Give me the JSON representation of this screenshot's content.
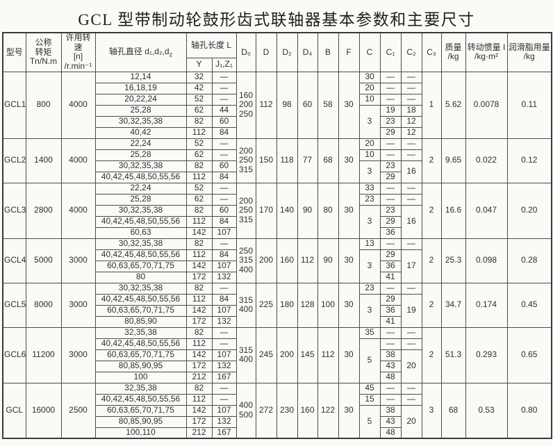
{
  "title": "GCL 型带制动轮鼓形齿式联轴器基本参数和主要尺寸",
  "header": {
    "model": "型号",
    "torque": "公称\n转矩\nTn/N.m",
    "speed": "许用转速\n[n]\n/r.min⁻¹",
    "bore_diameter_main": "轴孔直径 d₁,d₂,d",
    "bore_diameter_sub": "z",
    "bore_length": "轴孔长度 L",
    "len_Y": "Y",
    "len_J1Z1": "J₁,Z₁",
    "D0": "D₀",
    "D": "D",
    "D2": "D₂",
    "D4": "D₄",
    "B": "B",
    "F": "F",
    "C": "C",
    "C1": "C₁",
    "C2": "C₂",
    "C3": "C₃",
    "mass": "质量\n/kg",
    "inertia": "转动惯量 I\n/kg·m²",
    "grease": "润滑脂用量\n/kg"
  },
  "groups": [
    {
      "model": "GCL1",
      "torque": "800",
      "speed": "4000",
      "rows": [
        {
          "d": "12,14",
          "Y": "32",
          "J": "—"
        },
        {
          "d": "16,18,19",
          "Y": "42",
          "J": "—"
        },
        {
          "d": "20,22,24",
          "Y": "52",
          "J": "—"
        },
        {
          "d": "25,28",
          "Y": "62",
          "J": "44"
        },
        {
          "d": "30,32,35,38",
          "Y": "82",
          "J": "60"
        },
        {
          "d": "40,42",
          "Y": "112",
          "J": "84"
        }
      ],
      "D0": "160\n200\n250",
      "D": "112",
      "D2": "98",
      "D4": "60",
      "B": "58",
      "F": "30",
      "C": [
        [
          "30",
          1
        ],
        [
          "20",
          1
        ],
        [
          "10",
          1
        ],
        [
          "3",
          3
        ]
      ],
      "C1": [
        "—",
        "—",
        "—",
        "19",
        "23",
        "29"
      ],
      "C2": [
        [
          "—",
          1
        ],
        [
          "—",
          1
        ],
        [
          "—",
          1
        ],
        [
          "18",
          1
        ],
        [
          "12",
          1
        ],
        [
          "12",
          1
        ]
      ],
      "C3": "1",
      "mass": "5.62",
      "inertia": "0.0078",
      "grease": "0.11"
    },
    {
      "model": "GCL2",
      "torque": "1400",
      "speed": "4000",
      "rows": [
        {
          "d": "22,24",
          "Y": "52",
          "J": "—"
        },
        {
          "d": "25,28",
          "Y": "62",
          "J": "—"
        },
        {
          "d": "30,32,35,38",
          "Y": "82",
          "J": "60"
        },
        {
          "d": "40,42,45,48,50,55,56",
          "Y": "112",
          "J": "84"
        }
      ],
      "D0": "200\n250\n315",
      "D": "150",
      "D2": "118",
      "D4": "77",
      "B": "68",
      "F": "30",
      "C": [
        [
          "20",
          1
        ],
        [
          "10",
          1
        ],
        [
          "3",
          2
        ]
      ],
      "C1": [
        "—",
        "—",
        "23",
        "29"
      ],
      "C2": [
        [
          "—",
          1
        ],
        [
          "—",
          1
        ],
        [
          "16",
          2
        ]
      ],
      "C3": "2",
      "mass": "9.65",
      "inertia": "0.022",
      "grease": "0.12"
    },
    {
      "model": "GCL3",
      "torque": "2800",
      "speed": "4000",
      "rows": [
        {
          "d": "22,24",
          "Y": "52",
          "J": "—"
        },
        {
          "d": "25,28",
          "Y": "62",
          "J": "—"
        },
        {
          "d": "30,32,35,38",
          "Y": "82",
          "J": "60"
        },
        {
          "d": "40,42,45,48,50,55,56",
          "Y": "112",
          "J": "84"
        },
        {
          "d": "60,63",
          "Y": "142",
          "J": "107"
        }
      ],
      "D0": "200\n250\n315",
      "D": "170",
      "D2": "140",
      "D4": "90",
      "B": "80",
      "F": "30",
      "C": [
        [
          "33",
          1
        ],
        [
          "23",
          1
        ],
        [
          "3",
          3
        ]
      ],
      "C1": [
        "—",
        "—",
        "23",
        "29",
        "36"
      ],
      "C2": [
        [
          "—",
          1
        ],
        [
          "—",
          1
        ],
        [
          "16",
          3
        ]
      ],
      "C3": "2",
      "mass": "16.6",
      "inertia": "0.047",
      "grease": "0.20"
    },
    {
      "model": "GCL4",
      "torque": "5000",
      "speed": "3000",
      "rows": [
        {
          "d": "30,32,35,38",
          "Y": "82",
          "J": "—"
        },
        {
          "d": "40,42,45,48,50,55,56",
          "Y": "112",
          "J": "84"
        },
        {
          "d": "60,63,65,70,71,75",
          "Y": "142",
          "J": "107"
        },
        {
          "d": "80",
          "Y": "172",
          "J": "132"
        }
      ],
      "D0": "250\n315\n400",
      "D": "200",
      "D2": "160",
      "D4": "112",
      "B": "90",
      "F": "30",
      "C": [
        [
          "13",
          1
        ],
        [
          "3",
          3
        ]
      ],
      "C1": [
        "—",
        "29",
        "36",
        "41"
      ],
      "C2": [
        [
          "—",
          1
        ],
        [
          "17",
          3
        ]
      ],
      "C3": "2",
      "mass": "25.3",
      "inertia": "0.098",
      "grease": "0.28"
    },
    {
      "model": "GCL5",
      "torque": "8000",
      "speed": "3000",
      "rows": [
        {
          "d": "30,32,35,38",
          "Y": "82",
          "J": "—"
        },
        {
          "d": "40,42,45,48,50,55,56",
          "Y": "112",
          "J": "84"
        },
        {
          "d": "60,63,65,70,71,75",
          "Y": "142",
          "J": "107"
        },
        {
          "d": "80,85,90",
          "Y": "172",
          "J": "132"
        }
      ],
      "D0": "315\n400",
      "D": "225",
      "D2": "180",
      "D4": "128",
      "B": "100",
      "F": "30",
      "C": [
        [
          "23",
          1
        ],
        [
          "3",
          3
        ]
      ],
      "C1": [
        "—",
        "29",
        "36",
        "41"
      ],
      "C2": [
        [
          "—",
          1
        ],
        [
          "19",
          3
        ]
      ],
      "C3": "2",
      "mass": "34.7",
      "inertia": "0.174",
      "grease": "0.45"
    },
    {
      "model": "GCL6",
      "torque": "11200",
      "speed": "3000",
      "rows": [
        {
          "d": "32,35,38",
          "Y": "82",
          "J": "—"
        },
        {
          "d": "40,42,45,48,50,55,56",
          "Y": "112",
          "J": "—"
        },
        {
          "d": "60,63,65,70,71,75",
          "Y": "142",
          "J": "107"
        },
        {
          "d": "80,85,90,95",
          "Y": "172",
          "J": "132"
        },
        {
          "d": "100",
          "Y": "212",
          "J": "167"
        }
      ],
      "D0": "315\n400",
      "D": "245",
      "D2": "200",
      "D4": "145",
      "B": "112",
      "F": "30",
      "C": [
        [
          "35",
          1
        ],
        [
          "5",
          4
        ]
      ],
      "C1": [
        "—",
        "—",
        "38",
        "43",
        "48"
      ],
      "C2": [
        [
          "—",
          1
        ],
        [
          "—",
          1
        ],
        [
          "20",
          3
        ]
      ],
      "C3": "2",
      "mass": "51.3",
      "inertia": "0.293",
      "grease": "0.65"
    },
    {
      "model": "GCL",
      "torque": "16000",
      "speed": "2500",
      "rows": [
        {
          "d": "32,35,38",
          "Y": "82",
          "J": "—"
        },
        {
          "d": "40,42,45,48,50,55,56",
          "Y": "112",
          "J": "—"
        },
        {
          "d": "60,63,65,70,71,75",
          "Y": "142",
          "J": "107"
        },
        {
          "d": "80,85,90,95",
          "Y": "172",
          "J": "132"
        },
        {
          "d": "100,110",
          "Y": "212",
          "J": "167"
        }
      ],
      "D0": "400\n500",
      "D": "272",
      "D2": "230",
      "D4": "160",
      "B": "122",
      "F": "30",
      "C": [
        [
          "45",
          1
        ],
        [
          "15",
          1
        ],
        [
          "5",
          3
        ]
      ],
      "C1": [
        "—",
        "—",
        "38",
        "43",
        "48"
      ],
      "C2": [
        [
          "—",
          1
        ],
        [
          "—",
          1
        ],
        [
          "20",
          3
        ]
      ],
      "C3": "3",
      "mass": "68",
      "inertia": "0.53",
      "grease": "0.80"
    }
  ]
}
